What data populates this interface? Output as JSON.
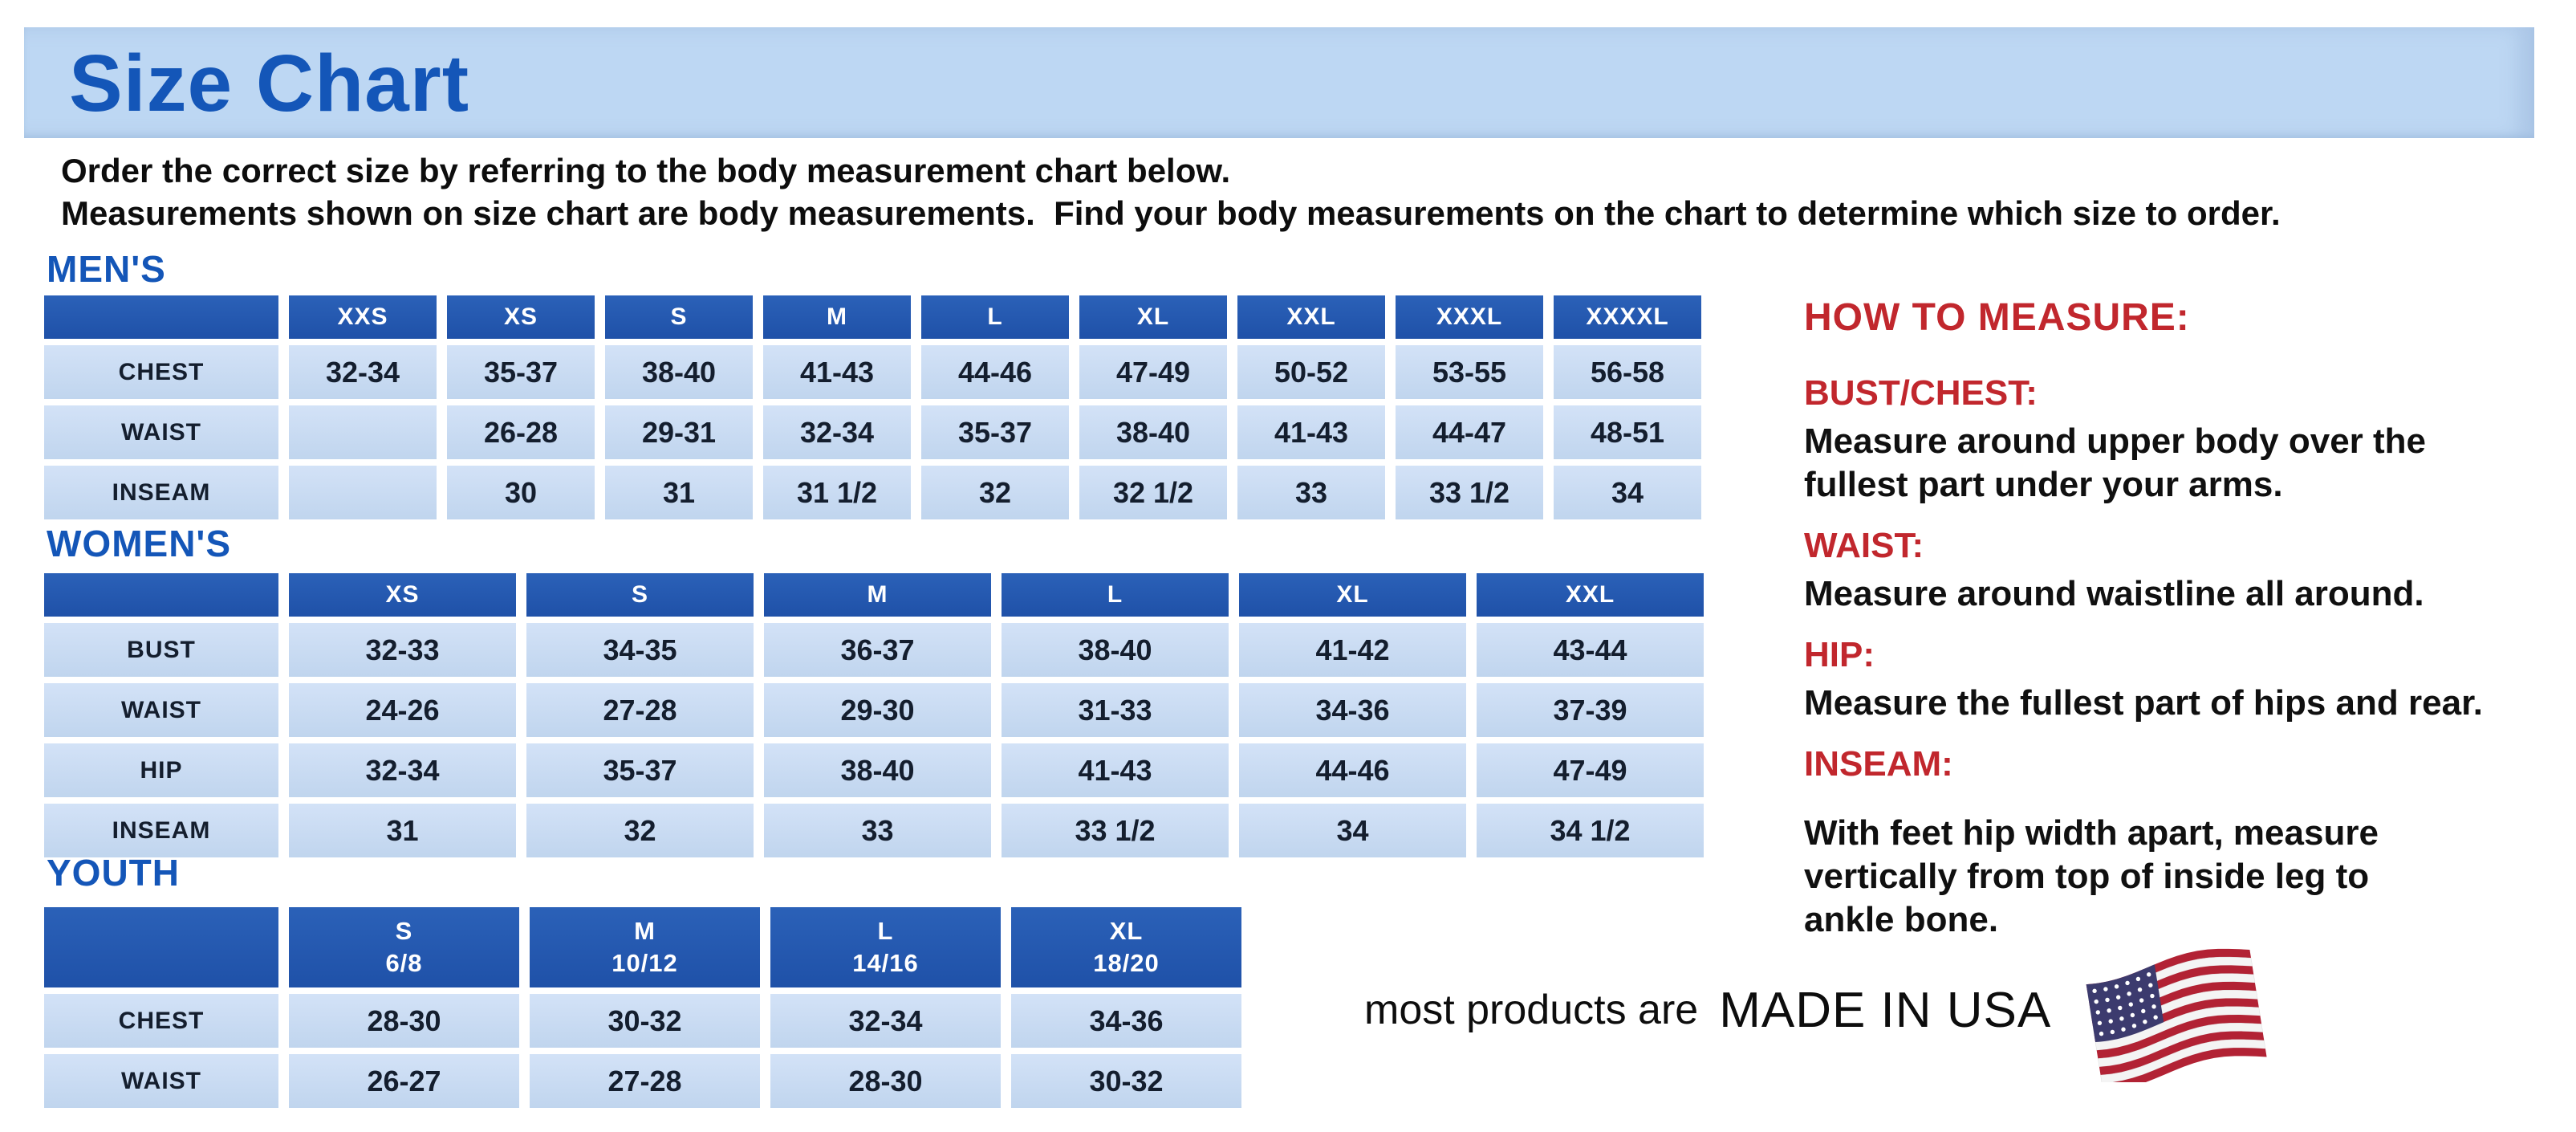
{
  "header": {
    "title": "Size Chart"
  },
  "intro": {
    "line1": "Order the correct size by referring to the body measurement chart below.",
    "line2": "Measurements shown on size chart are body measurements.  Find your body measurements on the chart to determine which size to order."
  },
  "tables": {
    "mens": {
      "label": "MEN'S",
      "sizes": [
        "XXS",
        "XS",
        "S",
        "M",
        "L",
        "XL",
        "XXL",
        "XXXL",
        "XXXXL"
      ],
      "rows": [
        {
          "label": "CHEST",
          "values": [
            "32-34",
            "35-37",
            "38-40",
            "41-43",
            "44-46",
            "47-49",
            "50-52",
            "53-55",
            "56-58"
          ]
        },
        {
          "label": "WAIST",
          "values": [
            "",
            "26-28",
            "29-31",
            "32-34",
            "35-37",
            "38-40",
            "41-43",
            "44-47",
            "48-51"
          ]
        },
        {
          "label": "INSEAM",
          "values": [
            "",
            "30",
            "31",
            "31 1/2",
            "32",
            "32 1/2",
            "33",
            "33 1/2",
            "34"
          ]
        }
      ]
    },
    "womens": {
      "label": "WOMEN'S",
      "sizes": [
        "XS",
        "S",
        "M",
        "L",
        "XL",
        "XXL"
      ],
      "rows": [
        {
          "label": "BUST",
          "values": [
            "32-33",
            "34-35",
            "36-37",
            "38-40",
            "41-42",
            "43-44"
          ]
        },
        {
          "label": "WAIST",
          "values": [
            "24-26",
            "27-28",
            "29-30",
            "31-33",
            "34-36",
            "37-39"
          ]
        },
        {
          "label": "HIP",
          "values": [
            "32-34",
            "35-37",
            "38-40",
            "41-43",
            "44-46",
            "47-49"
          ]
        },
        {
          "label": "INSEAM",
          "values": [
            "31",
            "32",
            "33",
            "33 1/2",
            "34",
            "34 1/2"
          ]
        }
      ]
    },
    "youth": {
      "label": "YOUTH",
      "sizes": [
        {
          "size": "S",
          "range": "6/8"
        },
        {
          "size": "M",
          "range": "10/12"
        },
        {
          "size": "L",
          "range": "14/16"
        },
        {
          "size": "XL",
          "range": "18/20"
        }
      ],
      "rows": [
        {
          "label": "CHEST",
          "values": [
            "28-30",
            "30-32",
            "32-34",
            "34-36"
          ]
        },
        {
          "label": "WAIST",
          "values": [
            "26-27",
            "27-28",
            "28-30",
            "30-32"
          ]
        }
      ]
    }
  },
  "how_to_measure": {
    "title": "HOW TO MEASURE:",
    "items": [
      {
        "heading": "BUST/CHEST:",
        "lines": [
          "Measure around upper body over the",
          "fullest part under your arms."
        ]
      },
      {
        "heading": "WAIST:",
        "lines": [
          "Measure around waistline all around."
        ]
      },
      {
        "heading": "HIP:",
        "lines": [
          "Measure the fullest part of hips and rear."
        ]
      },
      {
        "heading": "INSEAM:",
        "lines": [
          "With feet hip width apart, measure",
          "vertically from top of inside leg to",
          "ankle bone."
        ]
      }
    ]
  },
  "footer": {
    "prefix": "most products are",
    "emphasis": "MADE IN USA",
    "flag_icon": "us-flag-icon"
  },
  "colors": {
    "title_bar_bg": "#bdd7f3",
    "heading_blue": "#1456b8",
    "table_header_bg": "#2257ae",
    "cell_bg": "#c8daf2",
    "accent_red": "#c1272d",
    "flag_red": "#b22234",
    "flag_white": "#f4f4f4",
    "flag_blue": "#3c3b6e"
  }
}
